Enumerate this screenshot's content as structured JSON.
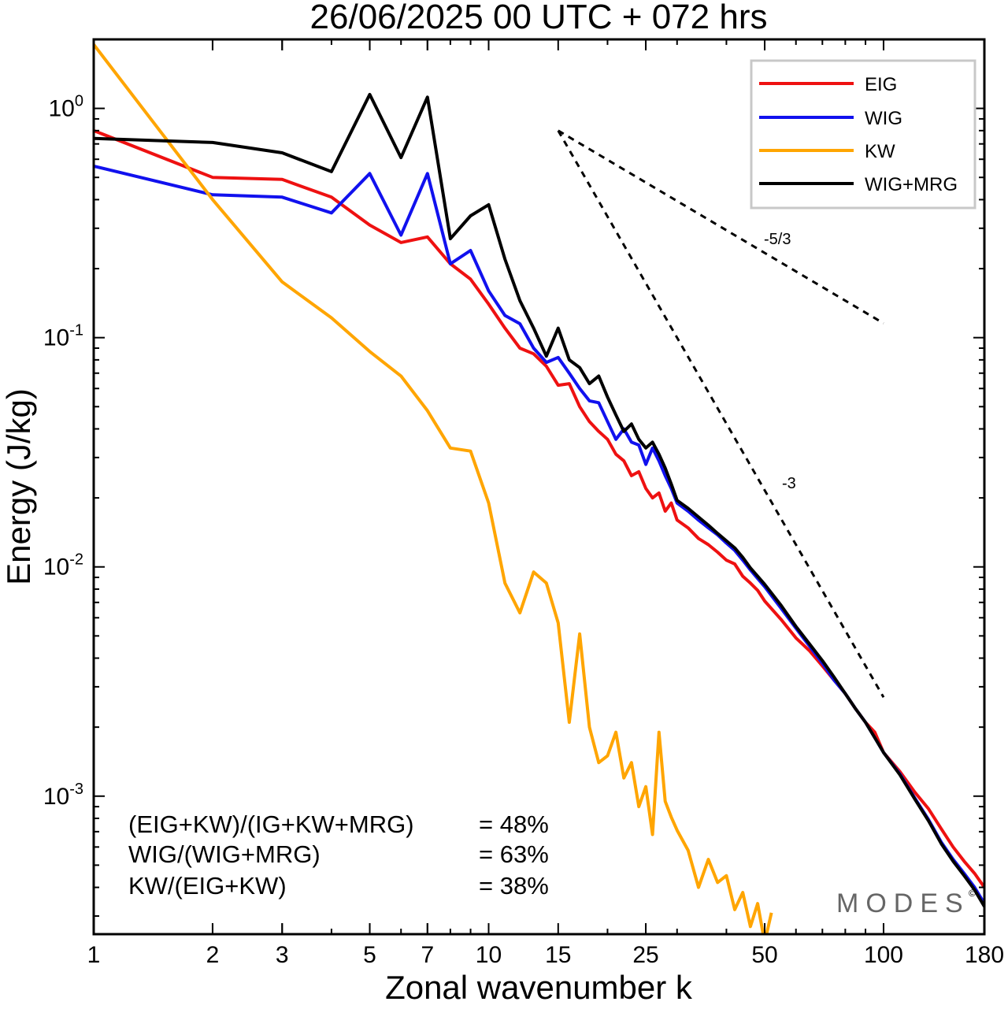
{
  "chart_data": {
    "type": "line",
    "title": "26/06/2025  00 UTC  + 072 hrs",
    "xlabel": "Zonal wavenumber k",
    "ylabel": "Energy (J/kg)",
    "x_scale": "log",
    "y_scale": "log",
    "xlim": [
      1,
      180
    ],
    "ylim": [
      0.00025,
      2
    ],
    "x_ticks": [
      {
        "value": 1,
        "label": "1"
      },
      {
        "value": 2,
        "label": "2"
      },
      {
        "value": 3,
        "label": "3"
      },
      {
        "value": 5,
        "label": "5"
      },
      {
        "value": 7,
        "label": "7"
      },
      {
        "value": 10,
        "label": "10"
      },
      {
        "value": 15,
        "label": "15"
      },
      {
        "value": 25,
        "label": "25"
      },
      {
        "value": 50,
        "label": "50"
      },
      {
        "value": 100,
        "label": "100"
      },
      {
        "value": 180,
        "label": "180"
      }
    ],
    "y_ticks": [
      {
        "value": 0.001,
        "base": "10",
        "exp": "-3"
      },
      {
        "value": 0.01,
        "base": "10",
        "exp": "-2"
      },
      {
        "value": 0.1,
        "base": "10",
        "exp": "-1"
      },
      {
        "value": 1,
        "base": "10",
        "exp": "0"
      }
    ],
    "grid": false,
    "legend_position": "top-right",
    "series": [
      {
        "name": "EIG",
        "color": "#ee1111",
        "x": [
          1,
          2,
          3,
          4,
          5,
          6,
          7,
          8,
          9,
          10,
          11,
          12,
          13,
          14,
          15,
          16,
          17,
          18,
          19,
          20,
          21,
          22,
          23,
          24,
          25,
          26,
          27,
          28,
          29,
          30,
          32,
          34,
          36,
          38,
          40,
          42,
          44,
          46,
          48,
          50,
          55,
          60,
          65,
          70,
          75,
          80,
          85,
          90,
          95,
          100,
          110,
          120,
          130,
          140,
          150,
          160,
          170,
          180
        ],
        "values": [
          0.8,
          0.5,
          0.49,
          0.41,
          0.31,
          0.26,
          0.275,
          0.21,
          0.18,
          0.14,
          0.11,
          0.09,
          0.085,
          0.075,
          0.062,
          0.063,
          0.05,
          0.043,
          0.039,
          0.036,
          0.031,
          0.029,
          0.025,
          0.026,
          0.022,
          0.02,
          0.021,
          0.0175,
          0.019,
          0.016,
          0.0148,
          0.0133,
          0.0125,
          0.0116,
          0.0107,
          0.0103,
          0.0091,
          0.0085,
          0.0079,
          0.0071,
          0.0059,
          0.0049,
          0.0043,
          0.0037,
          0.0032,
          0.0028,
          0.0024,
          0.0021,
          0.0019,
          0.00155,
          0.00128,
          0.00104,
          0.00088,
          0.00072,
          0.0006,
          0.00052,
          0.00046,
          0.0004
        ]
      },
      {
        "name": "WIG",
        "color": "#1111ee",
        "x": [
          1,
          2,
          3,
          4,
          5,
          6,
          7,
          8,
          9,
          10,
          11,
          12,
          13,
          14,
          15,
          16,
          17,
          18,
          19,
          20,
          21,
          22,
          23,
          24,
          25,
          26,
          27,
          28,
          29,
          30,
          32,
          34,
          36,
          38,
          40,
          42,
          44,
          46,
          48,
          50,
          55,
          60,
          65,
          70,
          75,
          80,
          85,
          90,
          95,
          100,
          110,
          120,
          130,
          140,
          150,
          160,
          170,
          180
        ],
        "values": [
          0.56,
          0.42,
          0.41,
          0.35,
          0.52,
          0.28,
          0.52,
          0.21,
          0.24,
          0.16,
          0.125,
          0.115,
          0.09,
          0.078,
          0.082,
          0.07,
          0.06,
          0.053,
          0.052,
          0.043,
          0.036,
          0.04,
          0.035,
          0.034,
          0.028,
          0.033,
          0.029,
          0.025,
          0.022,
          0.019,
          0.0175,
          0.016,
          0.0148,
          0.0138,
          0.0127,
          0.0118,
          0.0107,
          0.0097,
          0.0089,
          0.0082,
          0.0066,
          0.0054,
          0.0045,
          0.0038,
          0.0032,
          0.0028,
          0.0024,
          0.0021,
          0.0018,
          0.00155,
          0.00125,
          0.00098,
          0.00079,
          0.00063,
          0.00053,
          0.00046,
          0.0004,
          0.00034
        ]
      },
      {
        "name": "KW",
        "color": "#ffa500",
        "x": [
          1,
          2,
          3,
          4,
          5,
          6,
          7,
          8,
          9,
          10,
          11,
          12,
          13,
          14,
          15,
          16,
          17,
          18,
          19,
          20,
          21,
          22,
          23,
          24,
          25,
          26,
          27,
          28,
          29,
          30,
          32,
          34,
          36,
          38,
          40,
          42,
          44,
          46,
          48,
          50,
          52
        ],
        "values": [
          1.9,
          0.4,
          0.175,
          0.122,
          0.087,
          0.068,
          0.048,
          0.033,
          0.032,
          0.019,
          0.0085,
          0.0063,
          0.0095,
          0.0085,
          0.0057,
          0.0021,
          0.0051,
          0.002,
          0.0014,
          0.0015,
          0.0019,
          0.0012,
          0.0014,
          0.0009,
          0.0011,
          0.00068,
          0.0019,
          0.00095,
          0.00081,
          0.00071,
          0.00058,
          0.0004,
          0.00053,
          0.00042,
          0.00045,
          0.00032,
          0.00038,
          0.00027,
          0.00034,
          0.00023,
          0.00031
        ]
      },
      {
        "name": "WIG+MRG",
        "color": "#000000",
        "x": [
          1,
          2,
          3,
          4,
          5,
          6,
          7,
          8,
          9,
          10,
          11,
          12,
          13,
          14,
          15,
          16,
          17,
          18,
          19,
          20,
          21,
          22,
          23,
          24,
          25,
          26,
          27,
          28,
          29,
          30,
          32,
          34,
          36,
          38,
          40,
          42,
          44,
          46,
          48,
          50,
          55,
          60,
          65,
          70,
          75,
          80,
          85,
          90,
          95,
          100,
          110,
          120,
          130,
          140,
          150,
          160,
          170,
          180
        ],
        "values": [
          0.74,
          0.71,
          0.64,
          0.53,
          1.15,
          0.61,
          1.12,
          0.27,
          0.34,
          0.38,
          0.22,
          0.145,
          0.11,
          0.083,
          0.11,
          0.08,
          0.074,
          0.063,
          0.068,
          0.055,
          0.046,
          0.039,
          0.042,
          0.036,
          0.033,
          0.035,
          0.031,
          0.027,
          0.023,
          0.0195,
          0.018,
          0.0165,
          0.0152,
          0.014,
          0.013,
          0.0121,
          0.011,
          0.0099,
          0.0091,
          0.0084,
          0.0068,
          0.0055,
          0.0046,
          0.0039,
          0.0033,
          0.0028,
          0.0024,
          0.0021,
          0.0018,
          0.00155,
          0.00124,
          0.00097,
          0.00078,
          0.00062,
          0.00052,
          0.00045,
          0.00039,
          0.00033
        ]
      }
    ],
    "reference_lines": [
      {
        "label": "-5/3",
        "slope": -1.6667,
        "x": [
          15,
          100
        ],
        "y": [
          0.8,
          0.1155
        ]
      },
      {
        "label": "-3",
        "slope": -3,
        "x": [
          15,
          100
        ],
        "y": [
          0.8,
          0.0027
        ]
      }
    ]
  },
  "stats": [
    {
      "label": "(EIG+KW)/(IG+KW+MRG)",
      "value": "= 48%"
    },
    {
      "label": "WIG/(WIG+MRG)",
      "value": "= 63%"
    },
    {
      "label": "KW/(EIG+KW)",
      "value": "= 38%"
    }
  ],
  "watermark": {
    "text": "MODES",
    "mark": "©"
  }
}
